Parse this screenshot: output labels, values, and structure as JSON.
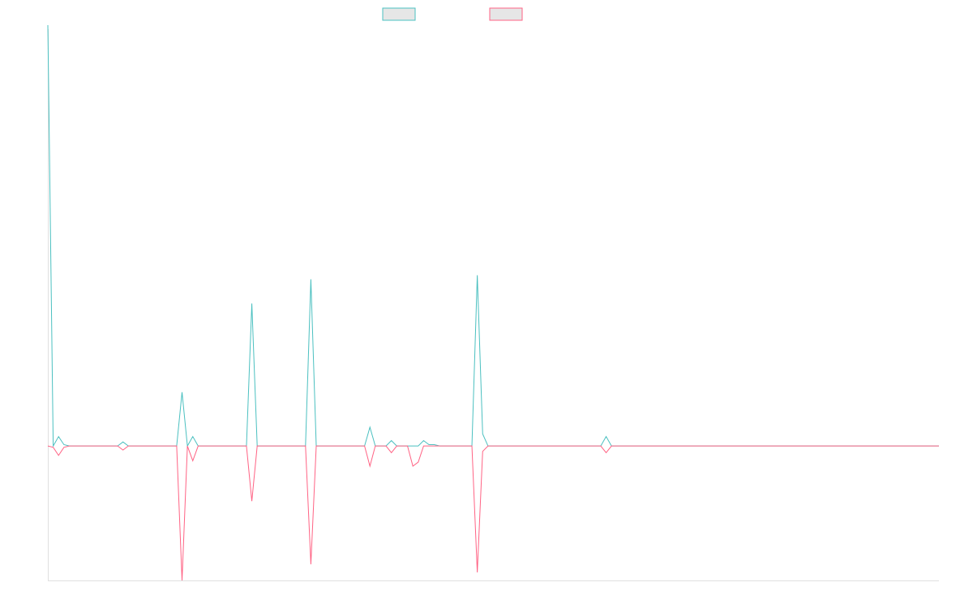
{
  "chart_data": {
    "type": "line",
    "title": "",
    "xlabel": "",
    "ylabel": "",
    "ylim": [
      -100,
      310
    ],
    "grid": false,
    "legend": {
      "placement": "top-center",
      "entries": [
        {
          "name": "",
          "color": "#4bc0c0"
        },
        {
          "name": "",
          "color": "#ff6384"
        }
      ]
    },
    "x": [
      0,
      1,
      2,
      3,
      4,
      5,
      6,
      7,
      8,
      9,
      10,
      11,
      12,
      13,
      14,
      15,
      16,
      17,
      18,
      19,
      20,
      21,
      22,
      23,
      24,
      25,
      26,
      27,
      28,
      29,
      30,
      31,
      32,
      33,
      34,
      35,
      36,
      37,
      38,
      39,
      40,
      41,
      42,
      43,
      44,
      45,
      46,
      47,
      48,
      49,
      50,
      51,
      52,
      53,
      54,
      55,
      56,
      57,
      58,
      59,
      60,
      61,
      62,
      63,
      64,
      65,
      66,
      67,
      68,
      69,
      70,
      71,
      72,
      73,
      74,
      75,
      76,
      77,
      78,
      79,
      80,
      81,
      82,
      83,
      84,
      85,
      86,
      87,
      88,
      89,
      90,
      91,
      92,
      93,
      94,
      95,
      96,
      97,
      98,
      99,
      100,
      101,
      102,
      103,
      104,
      105,
      106,
      107,
      108,
      109,
      110,
      111,
      112,
      113,
      114,
      115,
      116,
      117,
      118,
      119,
      120,
      121,
      122,
      123,
      124,
      125,
      126,
      127,
      128,
      129,
      130,
      131,
      132,
      133,
      134,
      135,
      136,
      137,
      138,
      139,
      140,
      141,
      142,
      143,
      144,
      145,
      146,
      147,
      148,
      149,
      150,
      151,
      152,
      153,
      154,
      155,
      156,
      157,
      158,
      159,
      160,
      161,
      162,
      163,
      164,
      165,
      166
    ],
    "series": [
      {
        "name": "",
        "color": "#4bc0c0",
        "values": [
          313,
          0,
          7,
          1,
          0,
          0,
          0,
          0,
          0,
          0,
          0,
          0,
          0,
          0,
          3,
          0,
          0,
          0,
          0,
          0,
          0,
          0,
          0,
          0,
          0,
          40,
          0,
          7,
          0,
          0,
          0,
          0,
          0,
          0,
          0,
          0,
          0,
          0,
          106,
          0,
          0,
          0,
          0,
          0,
          0,
          0,
          0,
          0,
          0,
          124,
          0,
          0,
          0,
          0,
          0,
          0,
          0,
          0,
          0,
          0,
          14,
          0,
          0,
          0,
          4,
          0,
          0,
          0,
          0,
          0,
          4,
          1,
          1,
          0,
          0,
          0,
          0,
          0,
          0,
          0,
          127,
          9,
          0,
          0,
          0,
          0,
          0,
          0,
          0,
          0,
          0,
          0,
          0,
          0,
          0,
          0,
          0,
          0,
          0,
          0,
          0,
          0,
          0,
          0,
          7,
          0,
          0,
          0,
          0,
          0,
          0,
          0,
          0,
          0,
          0,
          0,
          0,
          0,
          0,
          0,
          0,
          0,
          0,
          0,
          0,
          0,
          0,
          0,
          0,
          0,
          0,
          0,
          0,
          0,
          0,
          0,
          0,
          0,
          0,
          0,
          0,
          0,
          0,
          0,
          0,
          0,
          0,
          0,
          0,
          0,
          0,
          0,
          0,
          0,
          0,
          0,
          0,
          0,
          0,
          0,
          0,
          0,
          0,
          0,
          0,
          0,
          0
        ]
      },
      {
        "name": "",
        "color": "#ff6384",
        "values": [
          0,
          -1,
          -7,
          -1,
          0,
          0,
          0,
          0,
          0,
          0,
          0,
          0,
          0,
          0,
          -3,
          0,
          0,
          0,
          0,
          0,
          0,
          0,
          0,
          0,
          0,
          -100,
          0,
          -11,
          0,
          0,
          0,
          0,
          0,
          0,
          0,
          0,
          0,
          0,
          -41,
          0,
          0,
          0,
          0,
          0,
          0,
          0,
          0,
          0,
          0,
          -88,
          0,
          0,
          0,
          0,
          0,
          0,
          0,
          0,
          0,
          0,
          -15,
          0,
          0,
          0,
          -5,
          0,
          0,
          0,
          -15,
          -12,
          0,
          0,
          0,
          0,
          0,
          0,
          0,
          0,
          0,
          0,
          -94,
          -4,
          0,
          0,
          0,
          0,
          0,
          0,
          0,
          0,
          0,
          0,
          0,
          0,
          0,
          0,
          0,
          0,
          0,
          0,
          0,
          0,
          0,
          0,
          -5,
          0,
          0,
          0,
          0,
          0,
          0,
          0,
          0,
          0,
          0,
          0,
          0,
          0,
          0,
          0,
          0,
          0,
          0,
          0,
          0,
          0,
          0,
          0,
          0,
          0,
          0,
          0,
          0,
          0,
          0,
          0,
          0,
          0,
          0,
          0,
          0,
          0,
          0,
          0,
          0,
          0,
          0,
          0,
          0,
          0,
          0,
          0,
          0,
          0,
          0,
          0,
          0,
          0,
          0,
          0,
          0,
          0,
          0,
          0,
          0,
          0,
          0
        ]
      }
    ]
  }
}
